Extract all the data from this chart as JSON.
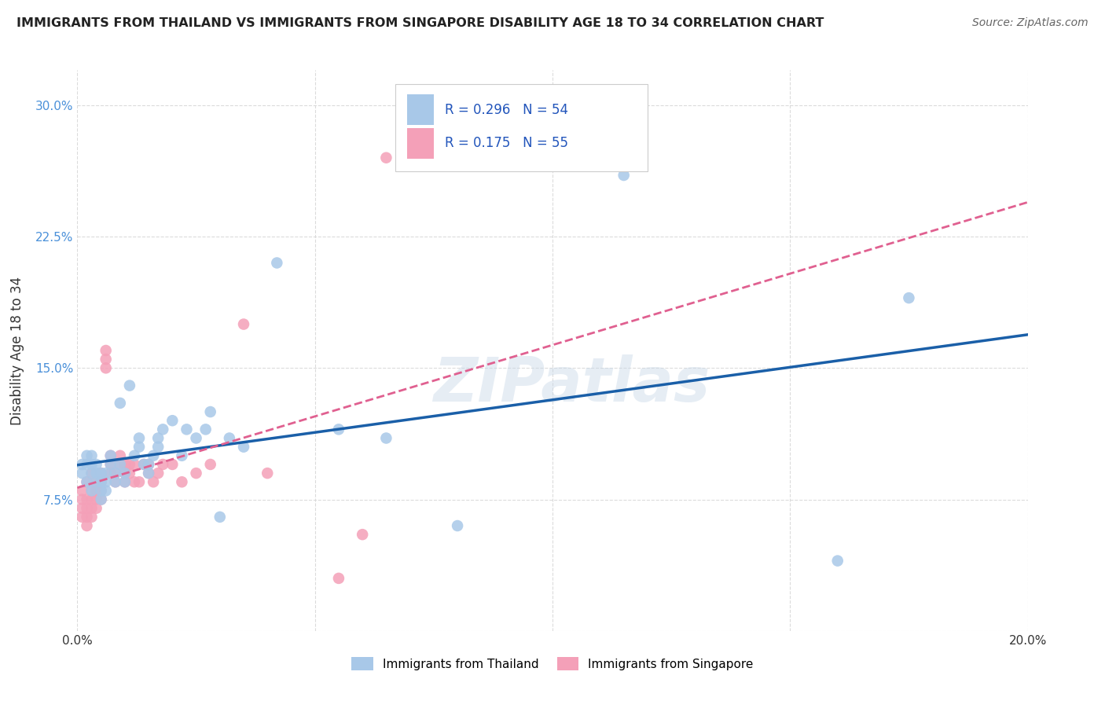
{
  "title": "IMMIGRANTS FROM THAILAND VS IMMIGRANTS FROM SINGAPORE DISABILITY AGE 18 TO 34 CORRELATION CHART",
  "source": "Source: ZipAtlas.com",
  "ylabel": "Disability Age 18 to 34",
  "xlim": [
    0.0,
    0.2
  ],
  "ylim": [
    0.0,
    0.32
  ],
  "thailand_R": 0.296,
  "thailand_N": 54,
  "singapore_R": 0.175,
  "singapore_N": 55,
  "thailand_color": "#a8c8e8",
  "singapore_color": "#f4a0b8",
  "thailand_line_color": "#1a5fa8",
  "singapore_line_color": "#e06090",
  "background_color": "#ffffff",
  "grid_color": "#d8d8d8",
  "watermark": "ZIPatlas",
  "thailand_x": [
    0.001,
    0.001,
    0.002,
    0.002,
    0.002,
    0.003,
    0.003,
    0.003,
    0.003,
    0.004,
    0.004,
    0.004,
    0.005,
    0.005,
    0.005,
    0.005,
    0.006,
    0.006,
    0.006,
    0.007,
    0.007,
    0.008,
    0.008,
    0.009,
    0.009,
    0.01,
    0.01,
    0.011,
    0.012,
    0.013,
    0.013,
    0.014,
    0.015,
    0.015,
    0.016,
    0.017,
    0.017,
    0.018,
    0.02,
    0.022,
    0.023,
    0.025,
    0.027,
    0.028,
    0.03,
    0.032,
    0.035,
    0.042,
    0.055,
    0.065,
    0.08,
    0.115,
    0.16,
    0.175
  ],
  "thailand_y": [
    0.09,
    0.095,
    0.085,
    0.1,
    0.095,
    0.08,
    0.09,
    0.095,
    0.1,
    0.085,
    0.09,
    0.095,
    0.075,
    0.08,
    0.085,
    0.09,
    0.08,
    0.085,
    0.09,
    0.095,
    0.1,
    0.085,
    0.09,
    0.095,
    0.13,
    0.085,
    0.09,
    0.14,
    0.1,
    0.105,
    0.11,
    0.095,
    0.09,
    0.095,
    0.1,
    0.105,
    0.11,
    0.115,
    0.12,
    0.1,
    0.115,
    0.11,
    0.115,
    0.125,
    0.065,
    0.11,
    0.105,
    0.21,
    0.115,
    0.11,
    0.06,
    0.26,
    0.04,
    0.19
  ],
  "singapore_x": [
    0.001,
    0.001,
    0.001,
    0.001,
    0.002,
    0.002,
    0.002,
    0.002,
    0.002,
    0.003,
    0.003,
    0.003,
    0.003,
    0.003,
    0.004,
    0.004,
    0.004,
    0.004,
    0.005,
    0.005,
    0.005,
    0.005,
    0.006,
    0.006,
    0.006,
    0.007,
    0.007,
    0.007,
    0.008,
    0.008,
    0.009,
    0.009,
    0.01,
    0.01,
    0.01,
    0.011,
    0.011,
    0.012,
    0.012,
    0.013,
    0.014,
    0.015,
    0.015,
    0.016,
    0.017,
    0.018,
    0.02,
    0.022,
    0.025,
    0.028,
    0.035,
    0.04,
    0.055,
    0.06,
    0.065
  ],
  "singapore_y": [
    0.065,
    0.07,
    0.075,
    0.08,
    0.06,
    0.065,
    0.07,
    0.075,
    0.085,
    0.065,
    0.07,
    0.075,
    0.08,
    0.09,
    0.07,
    0.075,
    0.08,
    0.085,
    0.075,
    0.08,
    0.085,
    0.09,
    0.15,
    0.16,
    0.155,
    0.09,
    0.095,
    0.1,
    0.085,
    0.09,
    0.095,
    0.1,
    0.085,
    0.09,
    0.095,
    0.09,
    0.095,
    0.085,
    0.095,
    0.085,
    0.095,
    0.09,
    0.095,
    0.085,
    0.09,
    0.095,
    0.095,
    0.085,
    0.09,
    0.095,
    0.175,
    0.09,
    0.03,
    0.055,
    0.27
  ]
}
